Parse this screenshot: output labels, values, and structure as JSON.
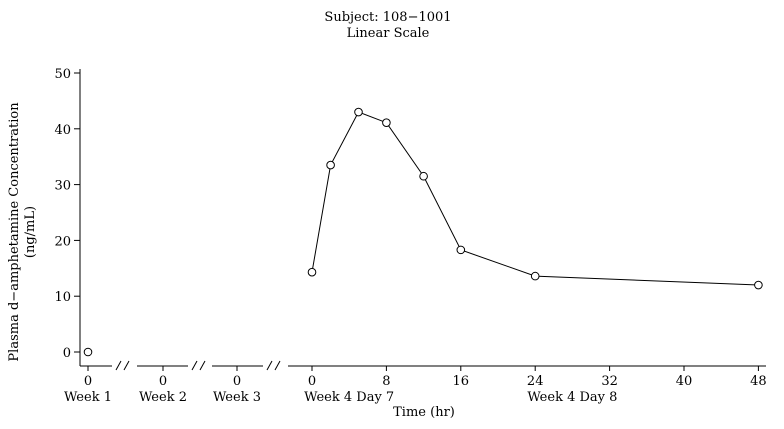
{
  "chart_data": {
    "type": "line",
    "title": "Subject: 108−1001",
    "subtitle": "Linear Scale",
    "xlabel": "Time (hr)",
    "ylabel_line1": "Plasma d−amphetamine Concentration",
    "ylabel_line2": "(ng/mL)",
    "ylim": [
      0,
      50
    ],
    "yticks": [
      "0",
      "10",
      "20",
      "30",
      "40",
      "50"
    ],
    "grid": false,
    "panels": [
      {
        "group_label": "Week 1",
        "ticks": [
          "0"
        ]
      },
      {
        "group_label": "Week 2",
        "ticks": [
          "0"
        ]
      },
      {
        "group_label": "Week 3",
        "ticks": [
          "0"
        ]
      },
      {
        "group_label_left": "Week 4 Day 7",
        "group_label_right": "Week 4 Day 8",
        "ticks": [
          "0",
          "8",
          "16",
          "24",
          "32",
          "40",
          "48"
        ]
      }
    ],
    "series": [
      {
        "panel": "Week 1",
        "x": [
          0
        ],
        "y": [
          0
        ]
      },
      {
        "panel": "Week 4",
        "x": [
          0,
          2,
          5,
          8,
          12,
          16,
          24,
          48
        ],
        "y": [
          14.3,
          33.5,
          43.0,
          41.1,
          31.5,
          18.3,
          13.6,
          12.0
        ]
      }
    ]
  }
}
